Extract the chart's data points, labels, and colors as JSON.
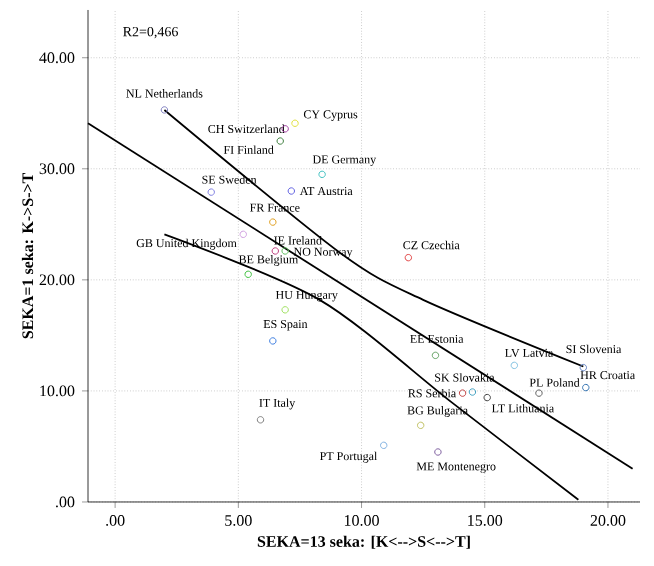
{
  "chart_data": {
    "type": "scatter",
    "xlabel": "SEKA=13 seka: [K<-->S<-->T]",
    "ylabel": "SEKA=1 seka: K->S->T",
    "xlim": [
      -1.1,
      21.3
    ],
    "ylim": [
      0,
      44.3
    ],
    "xticks": [
      {
        "value": 0,
        "label": ".00"
      },
      {
        "value": 5,
        "label": "5.00"
      },
      {
        "value": 10,
        "label": "10.00"
      },
      {
        "value": 15,
        "label": "15.00"
      },
      {
        "value": 20,
        "label": "20.00"
      }
    ],
    "yticks": [
      {
        "value": 0,
        "label": ".00"
      },
      {
        "value": 10,
        "label": "10.00"
      },
      {
        "value": 20,
        "label": "20.00"
      },
      {
        "value": 30,
        "label": "30.00"
      },
      {
        "value": 40,
        "label": "40.00"
      }
    ],
    "grid": true,
    "marker": "circle",
    "series": [
      {
        "x": [
          2.0,
          6.9,
          7.3,
          6.7,
          8.4,
          7.15,
          3.9,
          6.4,
          5.2,
          6.5,
          6.9,
          5.4,
          6.9,
          6.4,
          5.9,
          11.9,
          13.0,
          16.2,
          19.0,
          19.1,
          17.2,
          14.5,
          14.1,
          15.1,
          12.4,
          13.1,
          10.9
        ],
        "values": [
          35.3,
          33.6,
          34.1,
          32.5,
          29.5,
          28.0,
          27.9,
          25.2,
          24.1,
          22.6,
          22.6,
          20.5,
          17.3,
          14.5,
          7.4,
          22.0,
          13.2,
          12.3,
          12.1,
          10.3,
          9.8,
          9.9,
          9.8,
          9.4,
          6.9,
          4.5,
          5.1
        ],
        "colors": [
          "#8080c0",
          "#a040a0",
          "#e0e040",
          "#408040",
          "#40c0c0",
          "#6060e0",
          "#8080e0",
          "#e0a020",
          "#d0a0e0",
          "#c04080",
          "#60c060",
          "#40c040",
          "#a0e060",
          "#4080e0",
          "#808080",
          "#e04040",
          "#60a060",
          "#80c0e0",
          "#6080c0",
          "#3070b0",
          "#606060",
          "#40a0c0",
          "#c04040",
          "#404040",
          "#c0c060",
          "#8060a0",
          "#80b0e0"
        ]
      },
      {
        "type": "line",
        "marker": "none",
        "color": "#000000",
        "x": [
          -1.1,
          21.0
        ],
        "values": [
          34.1,
          3.0
        ]
      },
      {
        "type": "line",
        "marker": "none",
        "color": "#000000",
        "x": [
          2.0,
          9.15,
          12.5,
          19.0
        ],
        "values": [
          35.3,
          22.4,
          18.2,
          12.2
        ]
      },
      {
        "type": "line",
        "marker": "none",
        "color": "#000000",
        "x": [
          2.0,
          8.3,
          13.7,
          18.8
        ],
        "values": [
          24.1,
          18.2,
          8.9,
          0.2
        ]
      }
    ],
    "annotations": [
      "R2=0,466",
      {
        "text": "NL Netherlands",
        "x": 2.0,
        "y": 35.3
      },
      {
        "text": "CH Switzerland",
        "x": 6.9,
        "y": 33.6
      },
      {
        "text": "CY Cyprus",
        "x": 7.3,
        "y": 34.1
      },
      {
        "text": "FI Finland",
        "x": 6.7,
        "y": 32.5
      },
      {
        "text": "DE Germany",
        "x": 8.4,
        "y": 29.5
      },
      {
        "text": "AT Austria",
        "x": 7.15,
        "y": 28.0
      },
      {
        "text": "SE Sweden",
        "x": 3.9,
        "y": 27.9
      },
      {
        "text": "FR France",
        "x": 6.4,
        "y": 25.2
      },
      {
        "text": "GB United Kingdom",
        "x": 5.2,
        "y": 24.1
      },
      {
        "text": "IE Ireland",
        "x": 6.5,
        "y": 22.6
      },
      {
        "text": "NO Norway",
        "x": 6.9,
        "y": 22.6
      },
      {
        "text": "BE Belgium",
        "x": 5.4,
        "y": 20.5
      },
      {
        "text": "HU Hungary",
        "x": 6.9,
        "y": 17.3
      },
      {
        "text": "ES Spain",
        "x": 6.4,
        "y": 14.5
      },
      {
        "text": "IT Italy",
        "x": 5.9,
        "y": 7.4
      },
      {
        "text": "CZ Czechia",
        "x": 11.9,
        "y": 22.0
      },
      {
        "text": "EE Estonia",
        "x": 13.0,
        "y": 13.2
      },
      {
        "text": "LV Latvia",
        "x": 16.2,
        "y": 12.3
      },
      {
        "text": "SI Slovenia",
        "x": 19.0,
        "y": 12.1
      },
      {
        "text": "HR Croatia",
        "x": 19.1,
        "y": 10.3
      },
      {
        "text": "PL Poland",
        "x": 17.2,
        "y": 9.8
      },
      {
        "text": "SK Slovakia",
        "x": 14.5,
        "y": 9.9
      },
      {
        "text": "RS Serbia",
        "x": 14.1,
        "y": 9.8
      },
      {
        "text": "LT Lithuania",
        "x": 15.1,
        "y": 9.4
      },
      {
        "text": "BG Bulgaria",
        "x": 12.4,
        "y": 6.9
      },
      {
        "text": "ME Montenegro",
        "x": 13.1,
        "y": 4.5
      },
      {
        "text": "PT Portugal",
        "x": 10.9,
        "y": 5.1
      }
    ]
  }
}
